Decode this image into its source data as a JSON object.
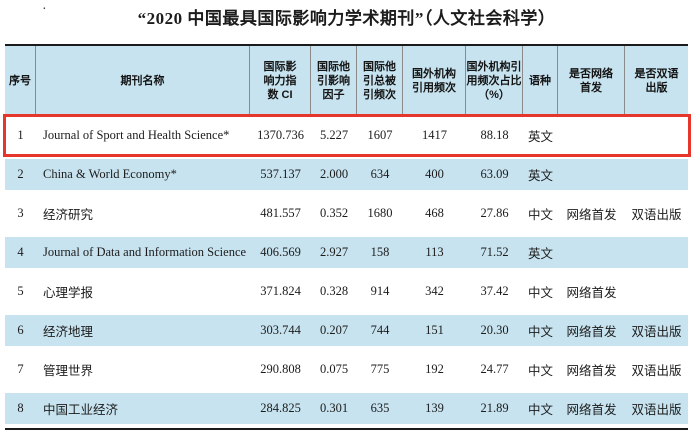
{
  "title": "“2020 中国最具国际影响力学术期刊”（人文社会科学）",
  "decor": {
    "stray_dot": "·"
  },
  "colors": {
    "header_bg": "#c7e3ef",
    "alt_row_bg": "#c7e3ef",
    "highlight_border": "#e6352b",
    "table_border": "#1b1b1b",
    "header_separator": "#8a8a8a"
  },
  "table": {
    "columns": [
      {
        "key": "index",
        "label": "序号"
      },
      {
        "key": "name",
        "label": "期刊名称"
      },
      {
        "key": "ci",
        "label": "国际影\n响力指\n数 CI"
      },
      {
        "key": "impact_factor",
        "label": "国际他\n引影响\n因子"
      },
      {
        "key": "total_cites",
        "label": "国际他\n引总被\n引频次"
      },
      {
        "key": "foreign_cites",
        "label": "国外机构\n引用频次"
      },
      {
        "key": "foreign_pct",
        "label": "国外机构引\n用频次占比\n（%）"
      },
      {
        "key": "language",
        "label": "语种"
      },
      {
        "key": "online_first",
        "label": "是否网络\n首发"
      },
      {
        "key": "bilingual",
        "label": "是否双语\n出版"
      }
    ],
    "rows": [
      {
        "index": "1",
        "name": "Journal of Sport and Health Science*",
        "ci": "1370.736",
        "impact_factor": "5.227",
        "total_cites": "1607",
        "foreign_cites": "1417",
        "foreign_pct": "88.18",
        "language": "英文",
        "online_first": "",
        "bilingual": "",
        "highlighted": true
      },
      {
        "index": "2",
        "name": "China & World Economy*",
        "ci": "537.137",
        "impact_factor": "2.000",
        "total_cites": "634",
        "foreign_cites": "400",
        "foreign_pct": "63.09",
        "language": "英文",
        "online_first": "",
        "bilingual": "",
        "highlighted": false
      },
      {
        "index": "3",
        "name": "经济研究",
        "ci": "481.557",
        "impact_factor": "0.352",
        "total_cites": "1680",
        "foreign_cites": "468",
        "foreign_pct": "27.86",
        "language": "中文",
        "online_first": "网络首发",
        "bilingual": "双语出版",
        "highlighted": false
      },
      {
        "index": "4",
        "name": "Journal of Data and Information Science",
        "ci": "406.569",
        "impact_factor": "2.927",
        "total_cites": "158",
        "foreign_cites": "113",
        "foreign_pct": "71.52",
        "language": "英文",
        "online_first": "",
        "bilingual": "",
        "highlighted": false
      },
      {
        "index": "5",
        "name": "心理学报",
        "ci": "371.824",
        "impact_factor": "0.328",
        "total_cites": "914",
        "foreign_cites": "342",
        "foreign_pct": "37.42",
        "language": "中文",
        "online_first": "网络首发",
        "bilingual": "",
        "highlighted": false
      },
      {
        "index": "6",
        "name": "经济地理",
        "ci": "303.744",
        "impact_factor": "0.207",
        "total_cites": "744",
        "foreign_cites": "151",
        "foreign_pct": "20.30",
        "language": "中文",
        "online_first": "网络首发",
        "bilingual": "双语出版",
        "highlighted": false
      },
      {
        "index": "7",
        "name": "管理世界",
        "ci": "290.808",
        "impact_factor": "0.075",
        "total_cites": "775",
        "foreign_cites": "192",
        "foreign_pct": "24.77",
        "language": "中文",
        "online_first": "网络首发",
        "bilingual": "双语出版",
        "highlighted": false
      },
      {
        "index": "8",
        "name": "中国工业经济",
        "ci": "284.825",
        "impact_factor": "0.301",
        "total_cites": "635",
        "foreign_cites": "139",
        "foreign_pct": "21.89",
        "language": "中文",
        "online_first": "网络首发",
        "bilingual": "双语出版",
        "highlighted": false
      }
    ]
  }
}
